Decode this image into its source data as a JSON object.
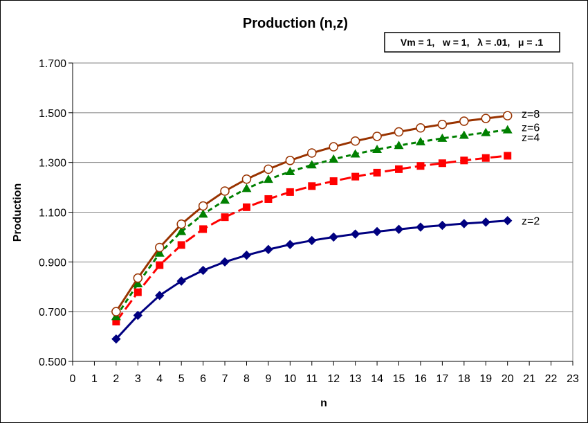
{
  "chart_data": {
    "type": "line",
    "title": "Production (n,z)",
    "annotation": "Vm = 1,   w = 1,   λ = .01,   μ = .1",
    "xlabel": "n",
    "ylabel": "Production",
    "xlim": [
      0,
      23
    ],
    "ylim": [
      0.5,
      1.7
    ],
    "xticks": [
      "0",
      "1",
      "2",
      "3",
      "4",
      "5",
      "6",
      "7",
      "8",
      "9",
      "10",
      "11",
      "12",
      "13",
      "14",
      "15",
      "16",
      "17",
      "18",
      "19",
      "20",
      "21",
      "22",
      "23"
    ],
    "yticks": [
      "0.500",
      "0.700",
      "0.900",
      "1.100",
      "1.300",
      "1.500",
      "1.700"
    ],
    "grid": "horizontal",
    "legend": "none",
    "x": [
      2,
      3,
      4,
      5,
      6,
      7,
      8,
      9,
      10,
      11,
      12,
      13,
      14,
      15,
      16,
      17,
      18,
      19,
      20
    ],
    "series": [
      {
        "name": "z=2",
        "color": "#000080",
        "marker": "diamond",
        "dash": "solid",
        "values": [
          0.59,
          0.685,
          0.765,
          0.823,
          0.866,
          0.9,
          0.927,
          0.95,
          0.97,
          0.986,
          1.0,
          1.012,
          1.022,
          1.031,
          1.04,
          1.047,
          1.054,
          1.06,
          1.066
        ]
      },
      {
        "name": "z=4",
        "color": "#ff0000",
        "marker": "square",
        "dash": "long-dash",
        "values": [
          0.66,
          0.778,
          0.887,
          0.968,
          1.032,
          1.08,
          1.12,
          1.153,
          1.181,
          1.205,
          1.225,
          1.243,
          1.259,
          1.273,
          1.286,
          1.297,
          1.308,
          1.318,
          1.327
        ]
      },
      {
        "name": "z=6",
        "color": "#008000",
        "marker": "triangle",
        "dash": "short-dash",
        "values": [
          0.68,
          0.812,
          0.935,
          1.022,
          1.092,
          1.148,
          1.195,
          1.232,
          1.263,
          1.29,
          1.313,
          1.334,
          1.352,
          1.368,
          1.383,
          1.397,
          1.409,
          1.42,
          1.431
        ]
      },
      {
        "name": "z=8",
        "color": "#993300",
        "marker": "circle-open",
        "dash": "solid",
        "values": [
          0.7,
          0.835,
          0.958,
          1.052,
          1.125,
          1.185,
          1.233,
          1.273,
          1.308,
          1.338,
          1.363,
          1.386,
          1.405,
          1.423,
          1.439,
          1.453,
          1.466,
          1.477,
          1.488
        ]
      }
    ]
  }
}
